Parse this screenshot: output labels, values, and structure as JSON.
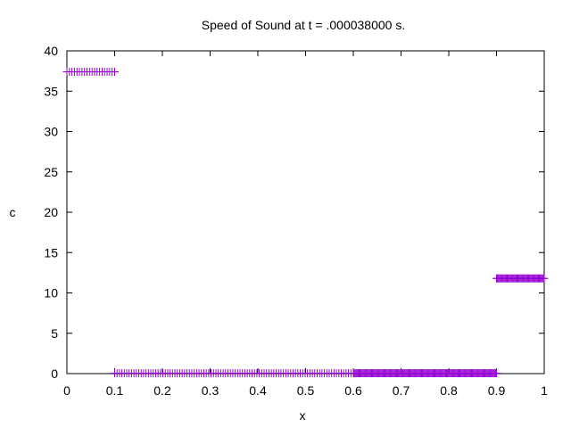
{
  "chart_data": {
    "type": "scatter",
    "title": "Speed of Sound at t = .000038000 s.",
    "xlabel": "x",
    "ylabel": "c",
    "xlim": [
      0,
      1
    ],
    "ylim": [
      0,
      40
    ],
    "xticks": [
      0,
      0.1,
      0.2,
      0.3,
      0.4,
      0.5,
      0.6,
      0.7,
      0.8,
      0.9,
      1
    ],
    "xtick_labels": [
      "0",
      "0.1",
      "0.2",
      "0.3",
      "0.4",
      "0.5",
      "0.6",
      "0.7",
      "0.8",
      "0.9",
      "1"
    ],
    "yticks": [
      0,
      5,
      10,
      15,
      20,
      25,
      30,
      35,
      40
    ],
    "ytick_labels": [
      "0",
      "5",
      "10",
      "15",
      "20",
      "25",
      "30",
      "35",
      "40"
    ],
    "grid": false,
    "legend": "none",
    "marker": "+",
    "series": [
      {
        "color": "#9400d3",
        "segments": [
          {
            "x_start": 0.0,
            "x_end": 0.1,
            "y": 37.4,
            "points": 20
          },
          {
            "x_start": 0.1,
            "x_end": 0.6,
            "y": 0.05,
            "points": 100
          },
          {
            "x_start": 0.6,
            "x_end": 0.9,
            "y": 0.05,
            "points": 150
          },
          {
            "x_start": 0.9,
            "x_end": 1.0,
            "y": 11.8,
            "points": 50
          }
        ]
      }
    ]
  }
}
